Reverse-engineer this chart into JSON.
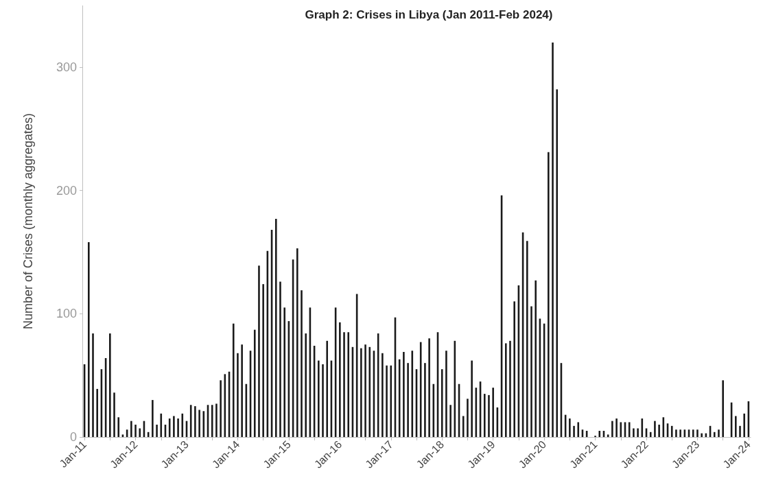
{
  "chart_data": {
    "type": "bar",
    "title": "Graph 2: Crises in Libya (Jan 2011-Feb 2024)",
    "ylabel": "Number of Crises (monthly aggregates)",
    "categories": [
      "Jan-11",
      null,
      null,
      null,
      null,
      null,
      null,
      null,
      null,
      null,
      null,
      null,
      "Jan-12",
      null,
      null,
      null,
      null,
      null,
      null,
      null,
      null,
      null,
      null,
      null,
      "Jan-13",
      null,
      null,
      null,
      null,
      null,
      null,
      null,
      null,
      null,
      null,
      null,
      "Jan-14",
      null,
      null,
      null,
      null,
      null,
      null,
      null,
      null,
      null,
      null,
      null,
      "Jan-15",
      null,
      null,
      null,
      null,
      null,
      null,
      null,
      null,
      null,
      null,
      null,
      "Jan-16",
      null,
      null,
      null,
      null,
      null,
      null,
      null,
      null,
      null,
      null,
      null,
      "Jan-17",
      null,
      null,
      null,
      null,
      null,
      null,
      null,
      null,
      null,
      null,
      null,
      "Jan-18",
      null,
      null,
      null,
      null,
      null,
      null,
      null,
      null,
      null,
      null,
      null,
      "Jan-19",
      null,
      null,
      null,
      null,
      null,
      null,
      null,
      null,
      null,
      null,
      null,
      "Jan-20",
      null,
      null,
      null,
      null,
      null,
      null,
      null,
      null,
      null,
      null,
      null,
      "Jan-21",
      null,
      null,
      null,
      null,
      null,
      null,
      null,
      null,
      null,
      null,
      null,
      "Jan-22",
      null,
      null,
      null,
      null,
      null,
      null,
      null,
      null,
      null,
      null,
      null,
      "Jan-23",
      null,
      null,
      null,
      null,
      null,
      null,
      null,
      null,
      null,
      null,
      null,
      "Jan-24"
    ],
    "values": [
      59,
      158,
      84,
      39,
      55,
      64,
      84,
      36,
      16,
      2,
      6,
      13,
      10,
      7,
      13,
      4,
      30,
      10,
      19,
      10,
      15,
      17,
      15,
      19,
      13,
      26,
      25,
      22,
      21,
      26,
      26,
      27,
      46,
      51,
      53,
      92,
      68,
      75,
      43,
      70,
      87,
      139,
      124,
      151,
      168,
      177,
      126,
      105,
      94,
      144,
      153,
      119,
      84,
      105,
      74,
      62,
      59,
      78,
      62,
      105,
      93,
      85,
      85,
      73,
      116,
      72,
      75,
      73,
      70,
      84,
      68,
      58,
      58,
      97,
      63,
      69,
      60,
      70,
      55,
      77,
      60,
      80,
      43,
      85,
      55,
      70,
      26,
      78,
      43,
      17,
      31,
      62,
      40,
      45,
      35,
      34,
      40,
      24,
      196,
      76,
      78,
      110,
      123,
      166,
      159,
      106,
      127,
      96,
      92,
      231,
      320,
      282,
      60,
      18,
      15,
      9,
      12,
      6,
      5,
      0,
      1,
      5,
      5,
      2,
      13,
      15,
      12,
      12,
      12,
      7,
      7,
      15,
      7,
      4,
      13,
      10,
      16,
      11,
      9,
      6,
      6,
      6,
      6,
      6,
      6,
      3,
      3,
      9,
      4,
      6,
      46,
      0,
      28,
      17,
      9,
      19,
      29
    ],
    "color": "#1a1a1a",
    "ylim": [
      0,
      350
    ],
    "yticks": [
      0,
      100,
      200,
      300
    ],
    "grid": false
  }
}
